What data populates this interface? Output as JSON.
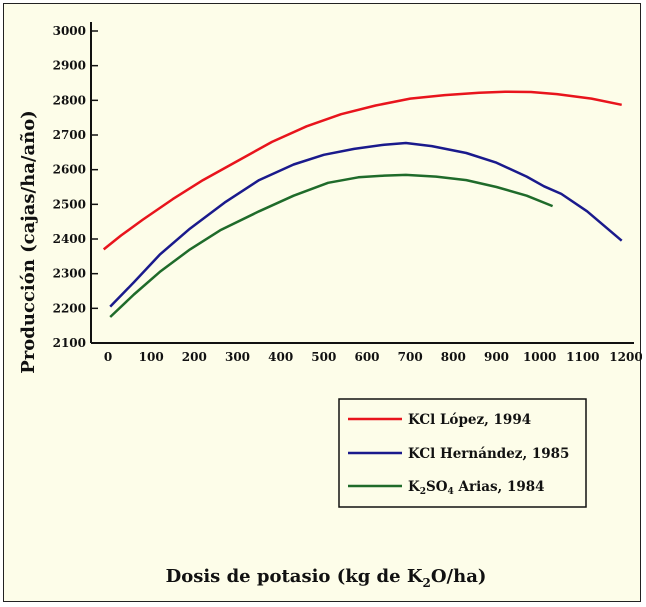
{
  "chart_data": {
    "type": "line",
    "xlabel": "Dosis de potasio (kg de K",
    "xlabel_sub": "2",
    "xlabel_end": "O/ha)",
    "ylabel": "Producción (cajas/ha/año)",
    "xlim": [
      -20,
      1200
    ],
    "ylim": [
      2100,
      3000
    ],
    "x_ticks": [
      "0",
      "100",
      "200",
      "300",
      "400",
      "500",
      "600",
      "700",
      "800",
      "900",
      "1000",
      "1100",
      "1200"
    ],
    "y_ticks": [
      "2100",
      "2200",
      "2300",
      "2400",
      "2500",
      "2600",
      "2700",
      "2800",
      "2900",
      "3000"
    ],
    "grid": false,
    "legend_position": "bottom-right",
    "series": [
      {
        "name": "KCl López, 1994",
        "color": "#e8141c",
        "points": [
          [
            -10,
            2370
          ],
          [
            30,
            2410
          ],
          [
            80,
            2455
          ],
          [
            150,
            2515
          ],
          [
            220,
            2570
          ],
          [
            300,
            2625
          ],
          [
            380,
            2680
          ],
          [
            460,
            2725
          ],
          [
            540,
            2760
          ],
          [
            620,
            2785
          ],
          [
            700,
            2805
          ],
          [
            780,
            2815
          ],
          [
            860,
            2822
          ],
          [
            920,
            2825
          ],
          [
            980,
            2824
          ],
          [
            1040,
            2818
          ],
          [
            1120,
            2805
          ],
          [
            1190,
            2787
          ]
        ]
      },
      {
        "name": "KCl Hernández, 1985",
        "color": "#1a1a8c",
        "points": [
          [
            5,
            2205
          ],
          [
            60,
            2275
          ],
          [
            120,
            2355
          ],
          [
            190,
            2430
          ],
          [
            270,
            2505
          ],
          [
            350,
            2570
          ],
          [
            430,
            2615
          ],
          [
            500,
            2643
          ],
          [
            570,
            2660
          ],
          [
            640,
            2672
          ],
          [
            690,
            2677
          ],
          [
            750,
            2668
          ],
          [
            830,
            2648
          ],
          [
            900,
            2620
          ],
          [
            970,
            2580
          ],
          [
            1010,
            2552
          ],
          [
            1050,
            2530
          ],
          [
            1110,
            2480
          ],
          [
            1190,
            2395
          ]
        ]
      },
      {
        "name": "K2SO4 Arias, 1984",
        "color": "#1f6b2a",
        "points": [
          [
            5,
            2175
          ],
          [
            60,
            2240
          ],
          [
            120,
            2305
          ],
          [
            190,
            2370
          ],
          [
            260,
            2425
          ],
          [
            350,
            2480
          ],
          [
            430,
            2525
          ],
          [
            510,
            2562
          ],
          [
            580,
            2578
          ],
          [
            640,
            2583
          ],
          [
            690,
            2585
          ],
          [
            760,
            2580
          ],
          [
            830,
            2570
          ],
          [
            900,
            2550
          ],
          [
            970,
            2525
          ],
          [
            1030,
            2495
          ]
        ]
      }
    ],
    "legend_labels": [
      {
        "text": "KCl López, 1994"
      },
      {
        "text": "KCl Hernández, 1985"
      },
      {
        "pre": "K",
        "sub1": "2",
        "mid": "SO",
        "sub2": "4",
        "post": " Arias, 1984"
      }
    ]
  }
}
